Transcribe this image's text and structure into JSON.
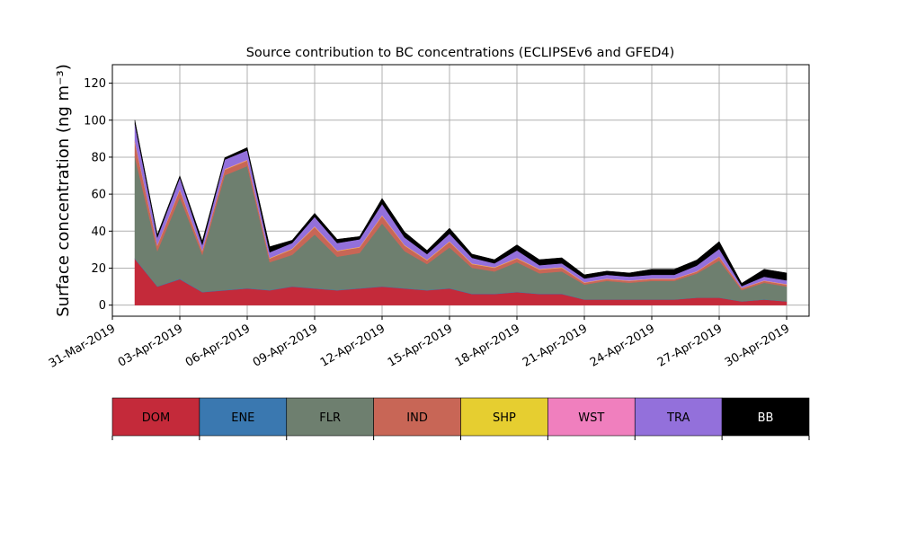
{
  "chart_data": {
    "type": "stacked_area",
    "title": "Source contribution to BC concentrations (ECLIPSEv6 and GFED4)",
    "y_label": "Surface concentration (ng m⁻³)",
    "x": [
      "2019-04-01",
      "2019-04-02",
      "2019-04-03",
      "2019-04-04",
      "2019-04-05",
      "2019-04-06",
      "2019-04-07",
      "2019-04-08",
      "2019-04-09",
      "2019-04-10",
      "2019-04-11",
      "2019-04-12",
      "2019-04-13",
      "2019-04-14",
      "2019-04-15",
      "2019-04-16",
      "2019-04-17",
      "2019-04-18",
      "2019-04-19",
      "2019-04-20",
      "2019-04-21",
      "2019-04-22",
      "2019-04-23",
      "2019-04-24",
      "2019-04-25",
      "2019-04-26",
      "2019-04-27",
      "2019-04-28",
      "2019-04-29",
      "2019-04-30"
    ],
    "series": [
      {
        "name": "DOM",
        "color": "#c42a3a",
        "values": [
          25,
          10,
          14,
          7,
          8,
          9,
          8,
          10,
          9,
          8,
          9,
          10,
          9,
          8,
          9,
          6,
          6,
          7,
          6,
          6,
          3,
          3,
          3,
          3,
          3,
          4,
          4,
          2,
          3,
          2
        ]
      },
      {
        "name": "ENE",
        "color": "#3a78b0",
        "values": [
          0.3,
          0.2,
          0.3,
          0.2,
          0.2,
          0.2,
          0.2,
          0.2,
          0.2,
          0.2,
          0.2,
          0.2,
          0.2,
          0.2,
          0.2,
          0.2,
          0.2,
          0.2,
          0.2,
          0.2,
          0.1,
          0.1,
          0.1,
          0.1,
          0.1,
          0.1,
          0.1,
          0.1,
          0.1,
          0.1
        ]
      },
      {
        "name": "FLR",
        "color": "#6e7f6f",
        "values": [
          55,
          19,
          44,
          20,
          62,
          66,
          15,
          17,
          29,
          18,
          19,
          34,
          20,
          14,
          22,
          14,
          12,
          16,
          11,
          12,
          8,
          10,
          9,
          10,
          10,
          13,
          20,
          6,
          9,
          8
        ]
      },
      {
        "name": "IND",
        "color": "#c86656",
        "values": [
          8,
          3,
          4,
          2,
          3,
          3,
          2,
          3,
          4,
          3,
          3,
          4,
          3,
          2,
          3,
          2,
          2,
          2,
          2,
          2,
          1,
          1,
          1,
          1,
          1,
          1,
          2,
          1,
          1,
          1
        ]
      },
      {
        "name": "SHP",
        "color": "#e6ce30",
        "values": [
          0.3,
          0.2,
          0.3,
          0.2,
          0.2,
          0.2,
          0.2,
          0.2,
          0.2,
          0.2,
          0.2,
          0.2,
          0.2,
          0.2,
          0.2,
          0.2,
          0.2,
          0.2,
          0.2,
          0.2,
          0.1,
          0.1,
          0.1,
          0.1,
          0.1,
          0.1,
          0.1,
          0.1,
          0.1,
          0.1
        ]
      },
      {
        "name": "WST",
        "color": "#f07fbe",
        "values": [
          0.4,
          0.2,
          0.3,
          0.2,
          0.3,
          0.3,
          0.2,
          0.2,
          0.3,
          0.2,
          0.2,
          0.3,
          0.2,
          0.2,
          0.2,
          0.2,
          0.2,
          0.2,
          0.2,
          0.2,
          0.2,
          0.2,
          0.2,
          0.2,
          0.2,
          0.2,
          0.2,
          0.1,
          0.2,
          0.2
        ]
      },
      {
        "name": "TRA",
        "color": "#9370db",
        "values": [
          9,
          4,
          6,
          3,
          5,
          5,
          3,
          3,
          5,
          4,
          4,
          6,
          4,
          3,
          4,
          3,
          2,
          4,
          2,
          2,
          2,
          2,
          2,
          2,
          2,
          3,
          4,
          1,
          2,
          2
        ]
      },
      {
        "name": "BB",
        "color": "#000000",
        "values": [
          2,
          1.5,
          1,
          2,
          1,
          1.5,
          3,
          1.5,
          2,
          2,
          1.5,
          3,
          3,
          2,
          3,
          2,
          2,
          3,
          3,
          3,
          2,
          2,
          2,
          3,
          3,
          3,
          4,
          1.5,
          4,
          4
        ]
      }
    ],
    "xlim": [
      "2019-03-31",
      "2019-05-01"
    ],
    "xticks": [
      {
        "value": "2019-03-31",
        "label": "31-Mar-2019"
      },
      {
        "value": "2019-04-03",
        "label": "03-Apr-2019"
      },
      {
        "value": "2019-04-06",
        "label": "06-Apr-2019"
      },
      {
        "value": "2019-04-09",
        "label": "09-Apr-2019"
      },
      {
        "value": "2019-04-12",
        "label": "12-Apr-2019"
      },
      {
        "value": "2019-04-15",
        "label": "15-Apr-2019"
      },
      {
        "value": "2019-04-18",
        "label": "18-Apr-2019"
      },
      {
        "value": "2019-04-21",
        "label": "21-Apr-2019"
      },
      {
        "value": "2019-04-24",
        "label": "24-Apr-2019"
      },
      {
        "value": "2019-04-27",
        "label": "27-Apr-2019"
      },
      {
        "value": "2019-04-30",
        "label": "30-Apr-2019"
      }
    ],
    "ylim": [
      -6,
      130
    ],
    "yticks": [
      0,
      20,
      40,
      60,
      80,
      100,
      120
    ],
    "grid": true
  }
}
